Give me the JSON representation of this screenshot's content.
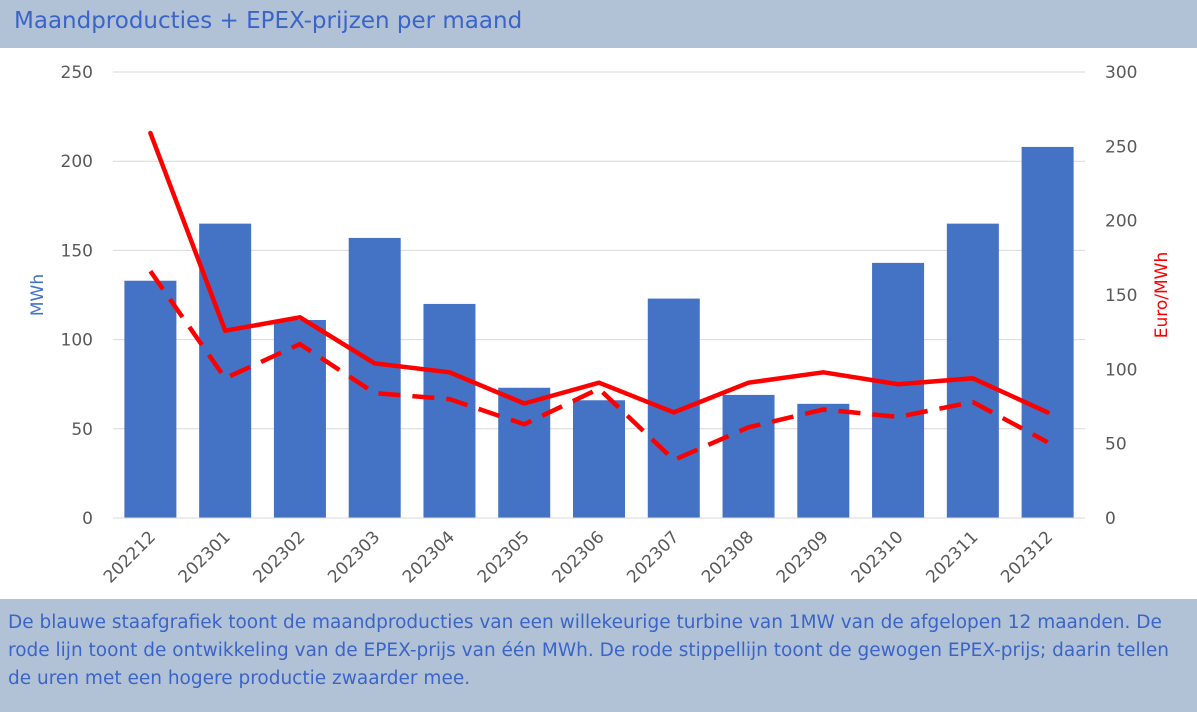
{
  "header": {
    "title": "Maandproducties + EPEX-prijzen per maand"
  },
  "footer": {
    "text": "De blauwe staafgrafiek toont de maandproducties van een willekeurige turbine van 1MW van de afgelopen 12 maanden. De rode lijn toont de ontwikkeling van de EPEX-prijs van één MWh. De rode stippellijn toont de gewogen EPEX-prijs; daarin tellen de uren met een hogere productie zwaarder mee."
  },
  "colors": {
    "bar": "#4472c4",
    "line": "#ff0000",
    "header_bg": "#b2c2d6",
    "title_text": "#3a64c8",
    "axis_text": "#595959",
    "grid": "#d9d9d9"
  },
  "chart_data": {
    "type": "bar",
    "categories": [
      "202212",
      "202301",
      "202302",
      "202303",
      "202304",
      "202305",
      "202306",
      "202307",
      "202308",
      "202309",
      "202310",
      "202311",
      "202312"
    ],
    "series": [
      {
        "type": "bar",
        "axis": "left",
        "values": [
          133,
          165,
          111,
          157,
          120,
          73,
          66,
          123,
          69,
          64,
          143,
          165,
          208
        ]
      },
      {
        "type": "line",
        "axis": "right",
        "style": "solid",
        "values": [
          259,
          126,
          135,
          104,
          98,
          77,
          91,
          71,
          91,
          98,
          90,
          94,
          71
        ]
      },
      {
        "type": "line",
        "axis": "right",
        "style": "dashed",
        "values": [
          166,
          94,
          117,
          84,
          80,
          63,
          87,
          39,
          61,
          73,
          68,
          78,
          51
        ]
      }
    ],
    "ylabel": "MWh",
    "y2label": "Euro/MWh",
    "ylim": [
      0,
      250
    ],
    "y2lim": [
      0,
      300
    ],
    "yticks": [
      "0",
      "50",
      "100",
      "150",
      "200",
      "250"
    ],
    "y2ticks": [
      "0",
      "50",
      "100",
      "150",
      "200",
      "250",
      "300"
    ],
    "grid": true
  }
}
